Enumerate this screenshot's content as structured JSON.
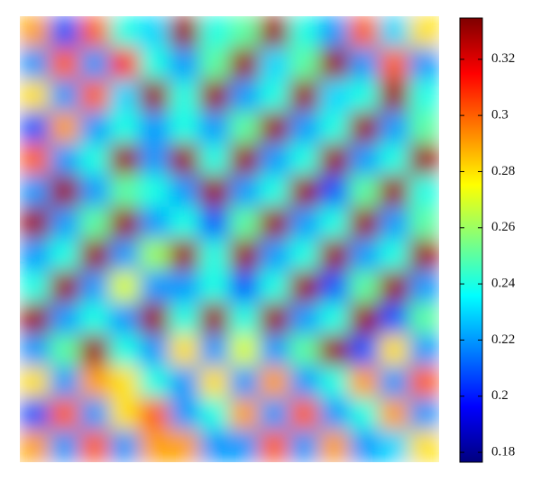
{
  "chart_data": {
    "type": "heatmap",
    "z": [
      [
        0.29,
        0.21,
        0.3,
        0.24,
        0.23,
        0.33,
        0.24,
        0.25,
        0.33,
        0.24,
        0.22,
        0.3,
        0.23,
        0.28
      ],
      [
        0.22,
        0.3,
        0.22,
        0.31,
        0.24,
        0.22,
        0.25,
        0.33,
        0.23,
        0.25,
        0.33,
        0.22,
        0.3,
        0.22
      ],
      [
        0.28,
        0.22,
        0.3,
        0.23,
        0.33,
        0.24,
        0.33,
        0.22,
        0.24,
        0.33,
        0.23,
        0.24,
        0.33,
        0.24
      ],
      [
        0.21,
        0.29,
        0.22,
        0.24,
        0.22,
        0.24,
        0.22,
        0.25,
        0.33,
        0.22,
        0.24,
        0.33,
        0.22,
        0.25
      ],
      [
        0.3,
        0.22,
        0.24,
        0.33,
        0.22,
        0.33,
        0.24,
        0.33,
        0.22,
        0.24,
        0.33,
        0.22,
        0.24,
        0.33
      ],
      [
        0.22,
        0.33,
        0.22,
        0.25,
        0.24,
        0.22,
        0.33,
        0.22,
        0.24,
        0.33,
        0.21,
        0.25,
        0.33,
        0.24
      ],
      [
        0.33,
        0.22,
        0.25,
        0.33,
        0.22,
        0.24,
        0.21,
        0.25,
        0.33,
        0.22,
        0.24,
        0.33,
        0.22,
        0.25
      ],
      [
        0.22,
        0.24,
        0.33,
        0.22,
        0.26,
        0.33,
        0.24,
        0.33,
        0.22,
        0.24,
        0.33,
        0.22,
        0.24,
        0.33
      ],
      [
        0.24,
        0.33,
        0.22,
        0.27,
        0.22,
        0.22,
        0.24,
        0.21,
        0.24,
        0.33,
        0.21,
        0.25,
        0.33,
        0.22
      ],
      [
        0.33,
        0.22,
        0.24,
        0.22,
        0.33,
        0.24,
        0.33,
        0.24,
        0.33,
        0.22,
        0.24,
        0.33,
        0.21,
        0.25
      ],
      [
        0.22,
        0.25,
        0.33,
        0.24,
        0.22,
        0.28,
        0.22,
        0.27,
        0.22,
        0.25,
        0.33,
        0.21,
        0.28,
        0.22
      ],
      [
        0.28,
        0.22,
        0.29,
        0.28,
        0.24,
        0.22,
        0.28,
        0.22,
        0.29,
        0.22,
        0.24,
        0.29,
        0.22,
        0.3
      ],
      [
        0.21,
        0.3,
        0.22,
        0.28,
        0.3,
        0.22,
        0.24,
        0.29,
        0.22,
        0.3,
        0.22,
        0.24,
        0.29,
        0.22
      ],
      [
        0.29,
        0.22,
        0.3,
        0.22,
        0.29,
        0.29,
        0.22,
        0.22,
        0.3,
        0.22,
        0.29,
        0.22,
        0.23,
        0.28
      ]
    ],
    "colormap": [
      "#00007f",
      "#0000ff",
      "#007fff",
      "#00ffff",
      "#7fff7f",
      "#ffff00",
      "#ff7f00",
      "#ff0000",
      "#7f0000"
    ],
    "clim": [
      0.1765,
      0.3347
    ],
    "cticks": [
      0.18,
      0.2,
      0.22,
      0.24,
      0.26,
      0.28,
      0.3,
      0.32
    ]
  }
}
